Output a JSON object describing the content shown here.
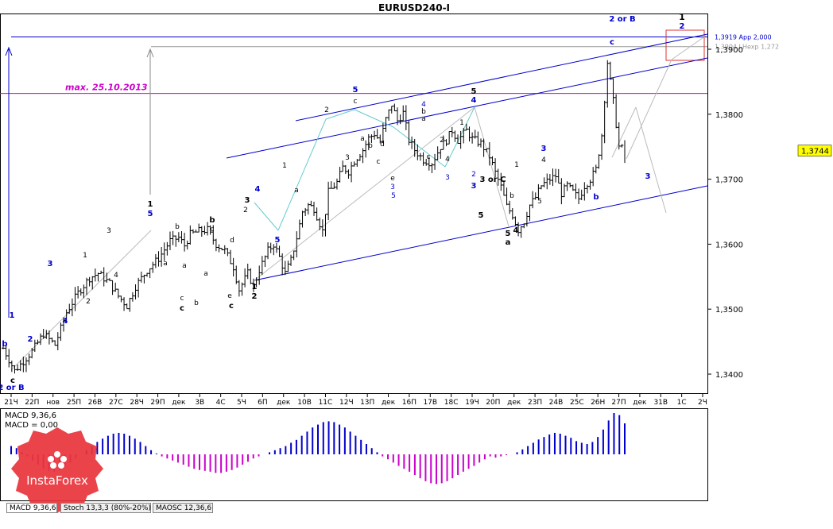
{
  "title": "EURUSD240-I",
  "chart_data": {
    "type": "ohlc",
    "title": "EURUSD240-I",
    "ylim": [
      1.3375,
      1.3925
    ],
    "y_ticks": [
      "1,3900",
      "1,3800",
      "1,3700",
      "1,3600",
      "1,3500",
      "1,3400"
    ],
    "x_ticks": [
      "21Ч",
      "22П",
      "нов",
      "25П",
      "26В",
      "27С",
      "28Ч",
      "29П",
      "дек",
      "3В",
      "4С",
      "5Ч",
      "6П",
      "дек",
      "10В",
      "11С",
      "12Ч",
      "13П",
      "дек",
      "16П",
      "17В",
      "18С",
      "19Ч",
      "20П",
      "дек",
      "23П",
      "24В",
      "25С",
      "26Н",
      "27П",
      "дек",
      "31В",
      "1С",
      "2Ч"
    ],
    "current_price": "1,3744",
    "levels": [
      {
        "label": "1,3919 App 2,000",
        "value": 1.3919,
        "color": "#0000cc"
      },
      {
        "label": "1,3904 LHexp 1,272",
        "value": 1.3904,
        "color": "#999999"
      },
      {
        "label": "max. 25.10.2013",
        "value": 1.3832,
        "color": "#cc00cc"
      }
    ],
    "price_path": [
      [
        0,
        1.344
      ],
      [
        4,
        1.3405
      ],
      [
        10,
        1.3435
      ],
      [
        14,
        1.3462
      ],
      [
        18,
        1.3445
      ],
      [
        22,
        1.3495
      ],
      [
        26,
        1.3525
      ],
      [
        30,
        1.3548
      ],
      [
        33,
        1.3555
      ],
      [
        37,
        1.354
      ],
      [
        40,
        1.352
      ],
      [
        43,
        1.3505
      ],
      [
        46,
        1.3535
      ],
      [
        50,
        1.356
      ],
      [
        54,
        1.3578
      ],
      [
        58,
        1.3605
      ],
      [
        61,
        1.361
      ],
      [
        63,
        1.3598
      ],
      [
        65,
        1.3615
      ],
      [
        68,
        1.362
      ],
      [
        71,
        1.3622
      ],
      [
        74,
        1.36
      ],
      [
        77,
        1.359
      ],
      [
        80,
        1.3565
      ],
      [
        82,
        1.353
      ],
      [
        85,
        1.3555
      ],
      [
        87,
        1.3535
      ],
      [
        89,
        1.356
      ],
      [
        92,
        1.359
      ],
      [
        94,
        1.36
      ],
      [
        96,
        1.358
      ],
      [
        98,
        1.3555
      ],
      [
        100,
        1.3575
      ],
      [
        102,
        1.361
      ],
      [
        104,
        1.365
      ],
      [
        106,
        1.366
      ],
      [
        108,
        1.3655
      ],
      [
        111,
        1.362
      ],
      [
        113,
        1.368
      ],
      [
        116,
        1.3695
      ],
      [
        118,
        1.3718
      ],
      [
        120,
        1.3712
      ],
      [
        122,
        1.3728
      ],
      [
        125,
        1.3745
      ],
      [
        127,
        1.3763
      ],
      [
        129,
        1.377
      ],
      [
        131,
        1.3758
      ],
      [
        133,
        1.3792
      ],
      [
        135,
        1.3815
      ],
      [
        137,
        1.379
      ],
      [
        139,
        1.3802
      ],
      [
        141,
        1.376
      ],
      [
        143,
        1.3745
      ],
      [
        146,
        1.373
      ],
      [
        149,
        1.3725
      ],
      [
        152,
        1.375
      ],
      [
        154,
        1.376
      ],
      [
        156,
        1.3775
      ],
      [
        158,
        1.376
      ],
      [
        161,
        1.3775
      ],
      [
        163,
        1.3762
      ],
      [
        166,
        1.3755
      ],
      [
        169,
        1.3735
      ],
      [
        171,
        1.371
      ],
      [
        173,
        1.3688
      ],
      [
        175,
        1.3658
      ],
      [
        177,
        1.3645
      ],
      [
        179,
        1.3622
      ],
      [
        181,
        1.3635
      ],
      [
        183,
        1.366
      ],
      [
        185,
        1.3672
      ],
      [
        187,
        1.369
      ],
      [
        190,
        1.37
      ],
      [
        192,
        1.3705
      ],
      [
        194,
        1.3678
      ],
      [
        196,
        1.369
      ],
      [
        198,
        1.368
      ],
      [
        200,
        1.367
      ],
      [
        202,
        1.369
      ],
      [
        204,
        1.37
      ],
      [
        206,
        1.3715
      ],
      [
        208,
        1.3768
      ],
      [
        210,
        1.388
      ],
      [
        212,
        1.382
      ],
      [
        214,
        1.375
      ],
      [
        216,
        1.3744
      ]
    ],
    "wave_labels": [
      "b",
      "c",
      "2 or B",
      "1",
      "2",
      "3",
      "4",
      "1",
      "2",
      "3",
      "4",
      "1",
      "5",
      "b",
      "a",
      "c",
      "a",
      "b",
      "c",
      "b",
      "c",
      "a",
      "d",
      "e",
      "c",
      "2",
      "1",
      "2",
      "3",
      "4",
      "5",
      "a",
      "1",
      "2",
      "3",
      "5",
      "c",
      "a",
      "b",
      "c",
      "d",
      "e",
      "3",
      "5",
      "4",
      "b",
      "a",
      "c",
      "2",
      "4",
      "3",
      "1",
      "5",
      "4",
      "2",
      "3",
      "3 or C",
      "5",
      "5",
      "4",
      "a",
      "b",
      "1",
      "3",
      "4",
      "5"
    ],
    "macd": {
      "label": "MACD 9,36,6",
      "value_label": "MACD = 0,00",
      "bars": [
        0.2,
        0.15,
        0.05,
        -0.05,
        -0.15,
        -0.25,
        -0.35,
        -0.4,
        -0.42,
        -0.38,
        -0.3,
        -0.2,
        -0.1,
        0.0,
        0.1,
        0.2,
        0.3,
        0.38,
        0.45,
        0.5,
        0.52,
        0.5,
        0.45,
        0.38,
        0.3,
        0.2,
        0.1,
        0.02,
        -0.05,
        -0.1,
        -0.15,
        -0.2,
        -0.25,
        -0.3,
        -0.35,
        -0.38,
        -0.4,
        -0.42,
        -0.45,
        -0.45,
        -0.42,
        -0.38,
        -0.32,
        -0.25,
        -0.18,
        -0.1,
        -0.05,
        0.0,
        0.05,
        0.1,
        0.15,
        0.2,
        0.28,
        0.35,
        0.45,
        0.55,
        0.65,
        0.72,
        0.78,
        0.8,
        0.78,
        0.72,
        0.65,
        0.55,
        0.45,
        0.35,
        0.25,
        0.15,
        0.05,
        -0.05,
        -0.12,
        -0.2,
        -0.28,
        -0.35,
        -0.42,
        -0.5,
        -0.58,
        -0.65,
        -0.7,
        -0.72,
        -0.7,
        -0.65,
        -0.58,
        -0.5,
        -0.42,
        -0.35,
        -0.28,
        -0.2,
        -0.12,
        -0.05,
        -0.08,
        -0.05,
        -0.02,
        0.0,
        0.05,
        0.12,
        0.2,
        0.28,
        0.36,
        0.42,
        0.48,
        0.52,
        0.5,
        0.45,
        0.4,
        0.32,
        0.28,
        0.25,
        0.3,
        0.42,
        0.6,
        0.82,
        1.0,
        0.95,
        0.75
      ]
    }
  },
  "tabs": [
    "MACD 9,36,6",
    "Stoch 13,3,3 (80%-20%)",
    "MAOSC 12,36,6"
  ],
  "badge": {
    "label": "InstaForex"
  }
}
